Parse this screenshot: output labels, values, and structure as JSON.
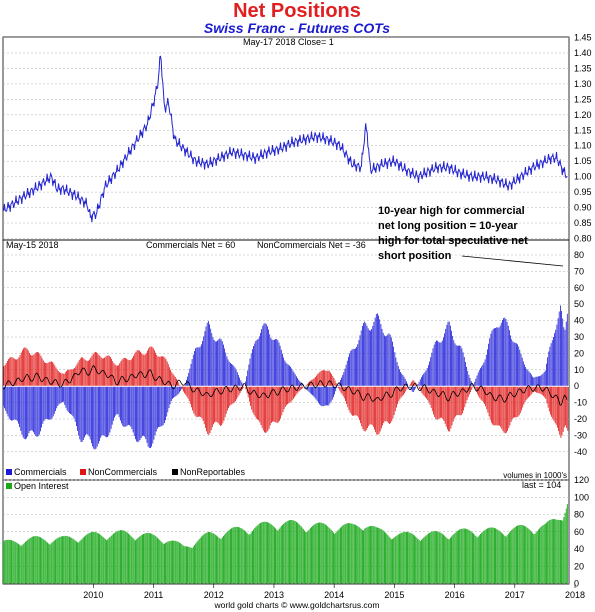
{
  "chart_data": [
    {
      "type": "line",
      "title": "Net Positions",
      "subtitle": "Swiss Franc - Futures COTs",
      "info": "May-17  2018   Close= 1",
      "ylim": [
        0.8,
        1.45
      ],
      "yticks": [
        "0.80",
        "0.85",
        "0.90",
        "0.95",
        "1.00",
        "1.05",
        "1.10",
        "1.15",
        "1.20",
        "1.25",
        "1.30",
        "1.35",
        "1.40",
        "1.45"
      ],
      "series": [
        {
          "values_x": [
            2009.0,
            2009.3,
            2009.6,
            2009.8,
            2009.9,
            2010.0,
            2010.2,
            2010.4,
            2010.45,
            2010.55,
            2010.7,
            2010.9,
            2011.0,
            2011.2,
            2011.4,
            2011.5,
            2011.57,
            2011.62,
            2011.68,
            2011.75,
            2011.85,
            2012.0,
            2012.2,
            2012.4,
            2012.6,
            2012.8,
            2013.0,
            2013.2,
            2013.4,
            2013.6,
            2013.8,
            2014.0,
            2014.2,
            2014.4,
            2014.6,
            2014.8,
            2014.95,
            2015.02,
            2015.05,
            2015.1,
            2015.3,
            2015.5,
            2015.7,
            2015.9,
            2016.0,
            2016.2,
            2016.4,
            2016.6,
            2016.8,
            2017.0,
            2017.2,
            2017.4,
            2017.6,
            2017.8,
            2018.0,
            2018.1,
            2018.2,
            2018.3,
            2018.38
          ],
          "values": [
            0.89,
            0.93,
            0.97,
            1.0,
            0.96,
            0.96,
            0.94,
            0.91,
            0.87,
            0.88,
            0.97,
            1.02,
            1.05,
            1.11,
            1.17,
            1.24,
            1.3,
            1.4,
            1.22,
            1.24,
            1.12,
            1.09,
            1.05,
            1.04,
            1.06,
            1.08,
            1.07,
            1.06,
            1.08,
            1.09,
            1.11,
            1.12,
            1.13,
            1.12,
            1.1,
            1.04,
            1.03,
            1.16,
            1.14,
            1.02,
            1.04,
            1.05,
            1.02,
            1.0,
            1.01,
            1.03,
            1.03,
            1.01,
            1.0,
            1.0,
            0.99,
            0.97,
            1.0,
            1.03,
            1.05,
            1.06,
            1.06,
            1.02,
            1.0
          ]
        }
      ]
    },
    {
      "type": "bar",
      "info_left": "May-15  2018",
      "info_mid": "Commercials Net = 60",
      "info_right": "NonCommercials Net = -36",
      "ylim": [
        -45,
        80
      ],
      "yticks": [
        "-40",
        "-30",
        "-20",
        "-10",
        "0",
        "10",
        "20",
        "30",
        "40",
        "50",
        "60",
        "70",
        "80"
      ],
      "legend": [
        "Commercials",
        "NonCommercials",
        "NonReportables"
      ],
      "legend_colors": [
        "#1c1cd8",
        "#e01414",
        "#000000"
      ],
      "note": "volumes in 1000's",
      "annotation": [
        "10-year high for commercial",
        "net long position = 10-year",
        "high for total speculative net",
        "short position"
      ],
      "commercials_env": {
        "x": [
          2009.0,
          2009.2,
          2009.4,
          2009.6,
          2009.8,
          2010.0,
          2010.3,
          2010.6,
          2010.9,
          2011.1,
          2011.4,
          2011.6,
          2011.8,
          2012.0,
          2012.2,
          2012.4,
          2012.6,
          2012.8,
          2013.0,
          2013.2,
          2013.4,
          2013.6,
          2013.8,
          2014.0,
          2014.2,
          2014.4,
          2014.6,
          2014.8,
          2015.0,
          2015.2,
          2015.4,
          2015.6,
          2015.8,
          2016.0,
          2016.2,
          2016.4,
          2016.6,
          2016.8,
          2017.0,
          2017.2,
          2017.4,
          2017.6,
          2017.8,
          2018.0,
          2018.15,
          2018.25,
          2018.32,
          2018.38
        ],
        "v": [
          -15,
          -25,
          -35,
          -30,
          -20,
          -10,
          -35,
          -40,
          -20,
          -30,
          -40,
          -30,
          -10,
          0,
          25,
          40,
          30,
          15,
          0,
          35,
          40,
          25,
          10,
          0,
          -10,
          -15,
          5,
          25,
          40,
          45,
          35,
          10,
          -5,
          10,
          30,
          40,
          25,
          0,
          20,
          45,
          40,
          20,
          5,
          10,
          40,
          50,
          35,
          60
        ]
      },
      "noncommercials_env": {
        "x": [
          2009.0,
          2009.2,
          2009.4,
          2009.6,
          2009.8,
          2010.0,
          2010.3,
          2010.6,
          2010.9,
          2011.1,
          2011.4,
          2011.6,
          2011.8,
          2012.0,
          2012.2,
          2012.4,
          2012.6,
          2012.8,
          2013.0,
          2013.2,
          2013.4,
          2013.6,
          2013.8,
          2014.0,
          2014.2,
          2014.4,
          2014.6,
          2014.8,
          2015.0,
          2015.2,
          2015.4,
          2015.6,
          2015.8,
          2016.0,
          2016.2,
          2016.4,
          2016.6,
          2016.8,
          2017.0,
          2017.2,
          2017.4,
          2017.6,
          2017.8,
          2018.0,
          2018.15,
          2018.25,
          2018.32,
          2018.38
        ],
        "v": [
          15,
          20,
          25,
          20,
          15,
          8,
          18,
          22,
          15,
          20,
          25,
          22,
          10,
          -5,
          -20,
          -30,
          -25,
          -12,
          0,
          -25,
          -30,
          -20,
          -8,
          0,
          8,
          12,
          -5,
          -20,
          -28,
          -30,
          -25,
          -8,
          5,
          -8,
          -22,
          -28,
          -18,
          0,
          -15,
          -30,
          -28,
          -15,
          -3,
          -8,
          -28,
          -32,
          -25,
          -36
        ]
      }
    },
    {
      "type": "bar",
      "label": "Open Interest",
      "last": "last = 104",
      "ylim": [
        0,
        120
      ],
      "yticks": [
        "0",
        "20",
        "40",
        "60",
        "80",
        "100",
        "120"
      ],
      "x": [
        2009.0,
        2009.5,
        2010.0,
        2010.5,
        2011.0,
        2011.3,
        2011.7,
        2012.0,
        2012.4,
        2012.8,
        2013.2,
        2013.6,
        2014.0,
        2014.4,
        2014.8,
        2015.0,
        2015.2,
        2015.6,
        2016.0,
        2016.4,
        2016.8,
        2017.2,
        2017.6,
        2018.0,
        2018.2,
        2018.3,
        2018.38
      ],
      "v": [
        50,
        55,
        55,
        60,
        62,
        60,
        55,
        45,
        60,
        65,
        70,
        75,
        72,
        70,
        70,
        75,
        65,
        60,
        60,
        62,
        65,
        65,
        68,
        70,
        80,
        90,
        104
      ],
      "xticks": [
        "2010",
        "2011",
        "2012",
        "2013",
        "2014",
        "2015",
        "2016",
        "2017",
        "2018"
      ]
    }
  ],
  "footer": "world gold charts © www.goldchartsrus.com"
}
